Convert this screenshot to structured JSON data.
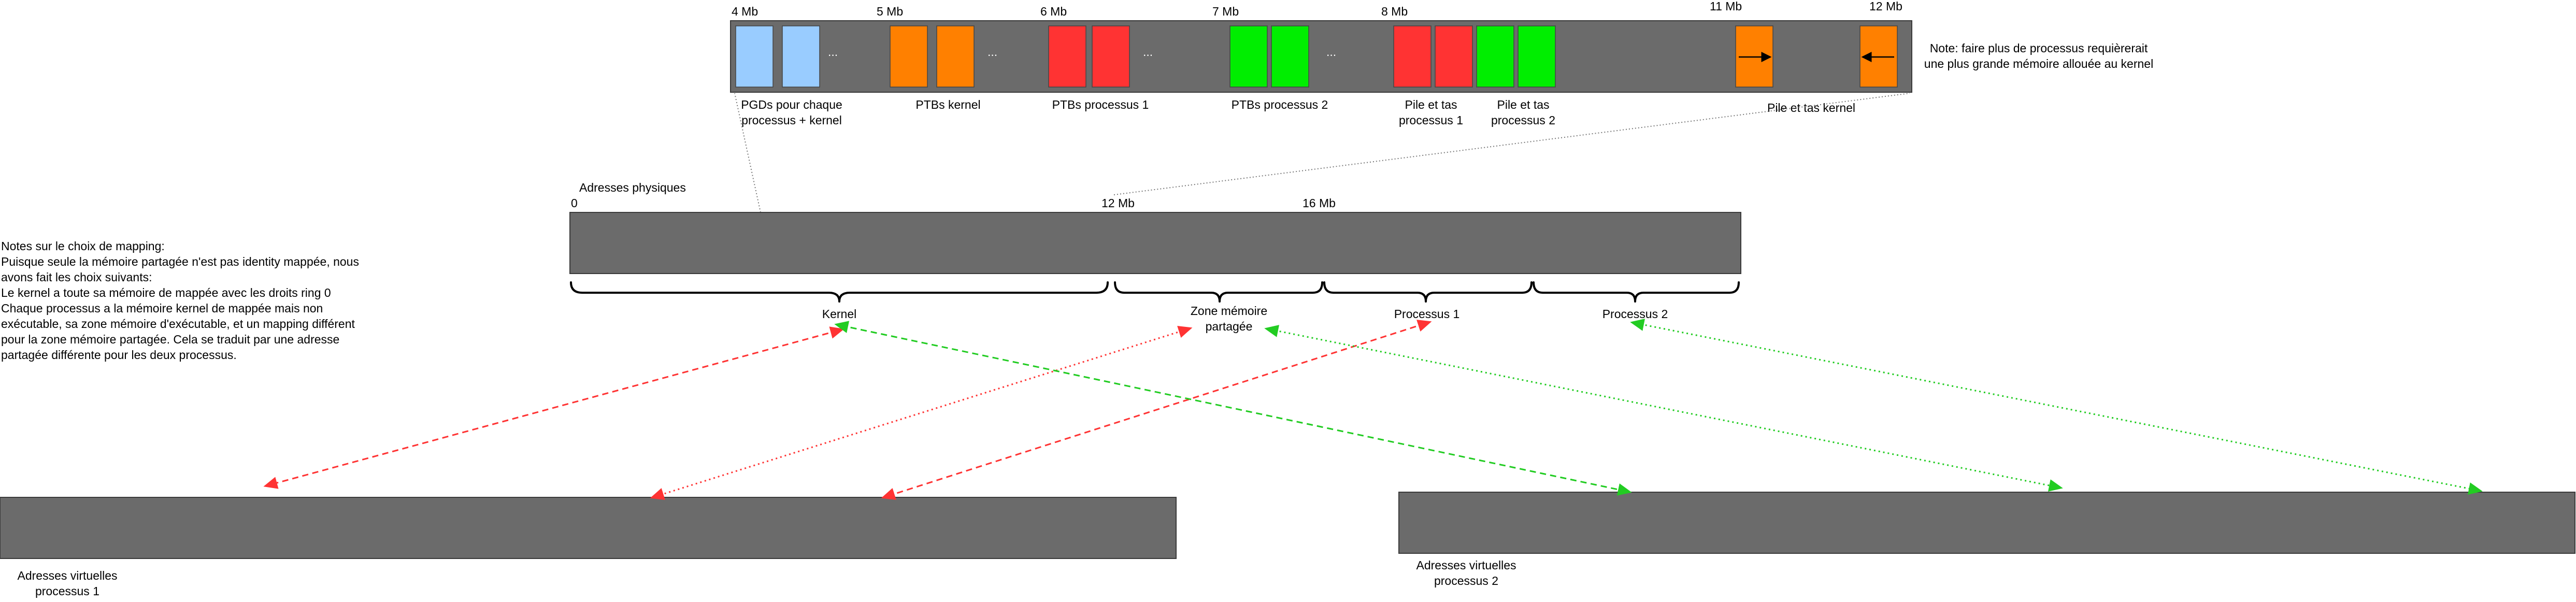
{
  "memory_map": {
    "address_labels": [
      "4 Mb",
      "5 Mb",
      "6 Mb",
      "7 Mb",
      "8 Mb",
      "11 Mb",
      "12 Mb"
    ],
    "ellipsis": "...",
    "region_labels": {
      "pgds": [
        "PGDs pour chaque",
        "processus + kernel"
      ],
      "ptbs_kernel": "PTBs kernel",
      "ptbs_p1": "PTBs processus 1",
      "ptbs_p2": "PTBs processus 2",
      "stack_p1": [
        "Pile et tas",
        "processus 1"
      ],
      "stack_p2": [
        "Pile et tas",
        "processus 2"
      ],
      "stack_kernel": "Pile et tas kernel"
    },
    "note": [
      "Note: faire plus de processus requièrerait",
      "une plus grande mémoire allouée au kernel"
    ],
    "colors": {
      "blue": "#99ccff",
      "orange": "#ff8000",
      "red": "#ff3333",
      "green": "#00ee00",
      "bar": "#6b6b6b"
    }
  },
  "physical": {
    "title": "Adresses physiques",
    "address_labels": [
      "0",
      "12 Mb",
      "16 Mb"
    ],
    "segments": {
      "kernel": "Kernel",
      "shared": [
        "Zone mémoire",
        "partagée"
      ],
      "p1": "Processus 1",
      "p2": "Processus 2"
    }
  },
  "notes": {
    "title": "Notes sur le choix de mapping:",
    "lines": [
      "Puisque seule la mémoire partagée n'est pas identity mappée, nous",
      "avons fait les choix suivants:",
      "Le kernel a toute sa mémoire de mappée avec les droits ring 0",
      "Chaque processus a la mémoire kernel de mappée mais non",
      "exécutable, sa zone mémoire d'exécutable, et un mapping différent",
      "pour la zone mémoire partagée. Cela se traduit par une adresse",
      "partagée différente pour les deux processus."
    ]
  },
  "virtual": {
    "p1": [
      "Adresses virtuelles",
      "processus 1"
    ],
    "p2": [
      "Adresses virtuelles",
      "processus 2"
    ]
  }
}
